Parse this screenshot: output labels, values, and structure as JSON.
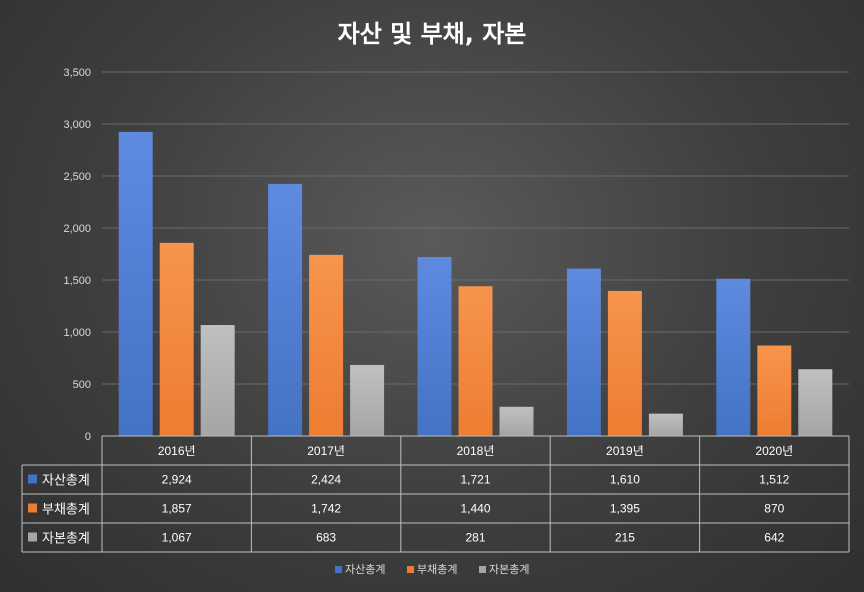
{
  "chart_data": {
    "type": "bar",
    "title": "자산 및 부채, 자본",
    "categories": [
      "2016년",
      "2017년",
      "2018년",
      "2019년",
      "2020년"
    ],
    "series": [
      {
        "name": "자산총계",
        "values": [
          2924,
          2424,
          1721,
          1610,
          1512
        ],
        "labels": [
          "2,924",
          "2,424",
          "1,721",
          "1,610",
          "1,512"
        ]
      },
      {
        "name": "부채총계",
        "values": [
          1857,
          1742,
          1440,
          1395,
          870
        ],
        "labels": [
          "1,857",
          "1,742",
          "1,440",
          "1,395",
          "870"
        ]
      },
      {
        "name": "자본총계",
        "values": [
          1067,
          683,
          281,
          215,
          642
        ],
        "labels": [
          "1,067",
          "683",
          "281",
          "215",
          "642"
        ]
      }
    ],
    "ylim": [
      0,
      3500
    ],
    "yticks": [
      0,
      500,
      1000,
      1500,
      2000,
      2500,
      3000,
      3500
    ],
    "ytick_labels": [
      "0",
      "500",
      "1,000",
      "1,500",
      "2,000",
      "2,500",
      "3,000",
      "3,500"
    ],
    "grid": true,
    "legend_position": "bottom",
    "data_table": true
  },
  "colors": {
    "series": [
      "#4472c4",
      "#ed7d31",
      "#a5a5a5"
    ],
    "series_light": [
      "#5e8ae0",
      "#f7944d",
      "#c0c0c0"
    ],
    "grid": "#6a6a6a",
    "table_border": "#bfbfbf"
  }
}
